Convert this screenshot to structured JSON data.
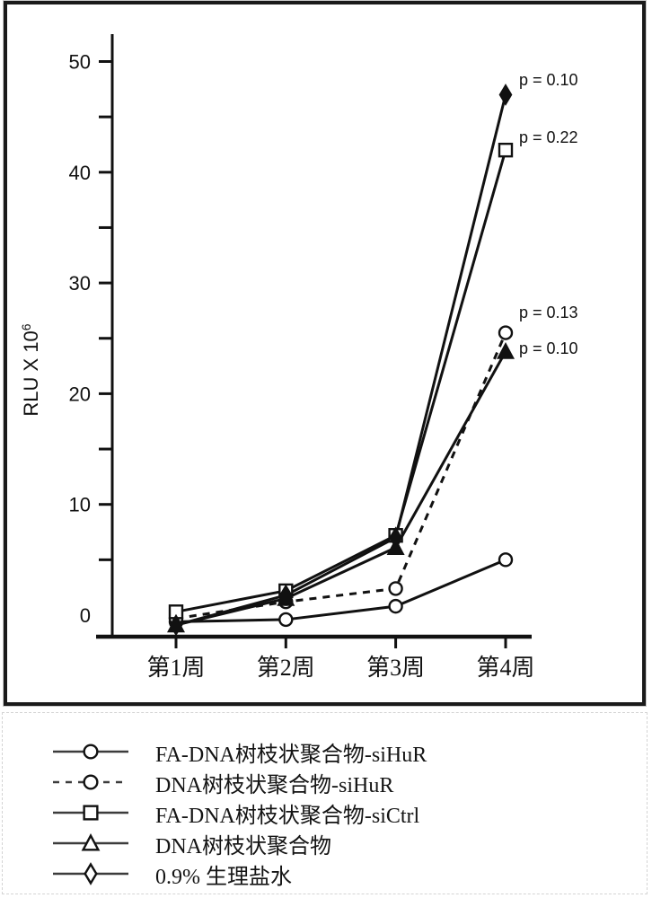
{
  "chart_data": {
    "type": "line",
    "title": "",
    "xlabel": "",
    "ylabel": "RLU X 10",
    "ylabel_exponent": "6",
    "categories": [
      "第1周",
      "第2周",
      "第3周",
      "第4周"
    ],
    "ylim": [
      -2,
      52
    ],
    "grid": false,
    "legend_position": "below",
    "y_axis": {
      "tick_values": [
        5,
        10,
        15,
        20,
        25,
        30,
        35,
        40,
        45,
        50
      ],
      "labeled_ticks": [
        0,
        10,
        20,
        30,
        40,
        50
      ]
    },
    "series": [
      {
        "name": "FA-DNA树枝状聚合物-siHuR",
        "marker": "circle",
        "marker_fill": "open",
        "line": "solid",
        "values": [
          -0.6,
          -0.4,
          0.8,
          5.0
        ]
      },
      {
        "name": "DNA树枝状聚合物-siHuR",
        "marker": "circle",
        "marker_fill": "open",
        "line": "dashed",
        "values": [
          -0.3,
          1.2,
          2.4,
          25.5
        ]
      },
      {
        "name": "FA-DNA树枝状聚合物-siCtrl",
        "marker": "square",
        "marker_fill": "open",
        "line": "solid",
        "values": [
          0.3,
          2.2,
          7.2,
          42.0
        ]
      },
      {
        "name": "DNA树枝状聚合物",
        "marker": "triangle",
        "marker_fill": "filled",
        "line": "solid",
        "values": [
          -0.9,
          1.5,
          6.1,
          23.8
        ]
      },
      {
        "name": "0.9% 生理盐水",
        "marker": "diamond",
        "marker_fill": "filled",
        "line": "solid",
        "values": [
          -0.9,
          1.8,
          7.0,
          47.0
        ]
      }
    ],
    "annotations": [
      {
        "text": "p = 0.10",
        "series": "0.9% 生理盐水",
        "at": "第4周"
      },
      {
        "text": "p = 0.22",
        "series": "FA-DNA树枝状聚合物-siCtrl",
        "at": "第4周"
      },
      {
        "text": "p = 0.13",
        "series": "DNA树枝状聚合物-siHuR",
        "at": "第4周"
      },
      {
        "text": "p = 0.10",
        "series": "DNA树枝状聚合物",
        "at": "第4周"
      }
    ]
  },
  "legend": {
    "items": [
      {
        "label": "FA-DNA树枝状聚合物-siHuR",
        "marker": "circle",
        "line": "solid"
      },
      {
        "label": "DNA树枝状聚合物-siHuR",
        "marker": "circle",
        "line": "dashed"
      },
      {
        "label": "FA-DNA树枝状聚合物-siCtrl",
        "marker": "square",
        "line": "solid"
      },
      {
        "label": "DNA树枝状聚合物",
        "marker": "triangle",
        "line": "solid"
      },
      {
        "label": "0.9% 生理盐水",
        "marker": "diamond",
        "line": "solid"
      }
    ]
  }
}
